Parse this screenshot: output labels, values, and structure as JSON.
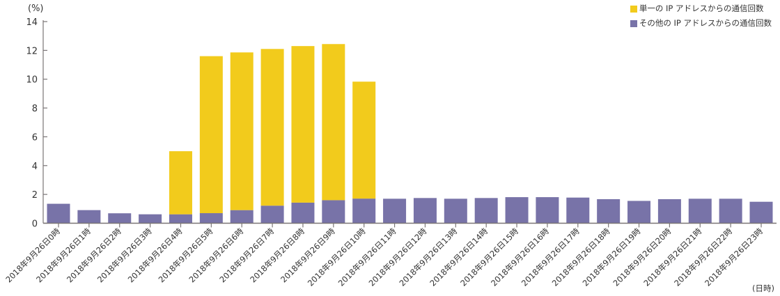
{
  "chart_data": {
    "type": "bar",
    "stacked": true,
    "ylabel": "(%)",
    "xlabel": "(日時)",
    "ylim": [
      0,
      14
    ],
    "yticks": [
      0,
      2,
      4,
      6,
      8,
      10,
      12,
      14
    ],
    "grid": false,
    "legend_position": "top-right",
    "categories": [
      "2018年9月26日0時",
      "2018年9月26日1時",
      "2018年9月26日2時",
      "2018年9月26日3時",
      "2018年9月26日4時",
      "2018年9月26日5時",
      "2018年9月26日6時",
      "2018年9月26日7時",
      "2018年9月26日8時",
      "2018年9月26日9時",
      "2018年9月26日10時",
      "2018年9月26日11時",
      "2018年9月26日12時",
      "2018年9月26日13時",
      "2018年9月26日14時",
      "2018年9月26日15時",
      "2018年9月26日16時",
      "2018年9月26日17時",
      "2018年9月26日18時",
      "2018年9月26日19時",
      "2018年9月26日20時",
      "2018年9月26日21時",
      "2018年9月26日22時",
      "2018年9月26日23時"
    ],
    "series": [
      {
        "name": "その他の IP アドレスからの通信回数",
        "color": "#7873a8",
        "values": [
          1.35,
          0.91,
          0.69,
          0.62,
          0.62,
          0.7,
          0.91,
          1.22,
          1.43,
          1.6,
          1.71,
          1.7,
          1.75,
          1.7,
          1.75,
          1.81,
          1.81,
          1.78,
          1.67,
          1.55,
          1.67,
          1.7,
          1.7,
          1.49
        ]
      },
      {
        "name": "単一の IP アドレスからの通信回数",
        "color": "#f2cb1c",
        "values": [
          0,
          0,
          0,
          0,
          4.38,
          10.9,
          10.95,
          10.88,
          10.87,
          10.84,
          8.12,
          0,
          0,
          0,
          0,
          0,
          0,
          0,
          0,
          0,
          0,
          0,
          0,
          0
        ]
      }
    ]
  }
}
